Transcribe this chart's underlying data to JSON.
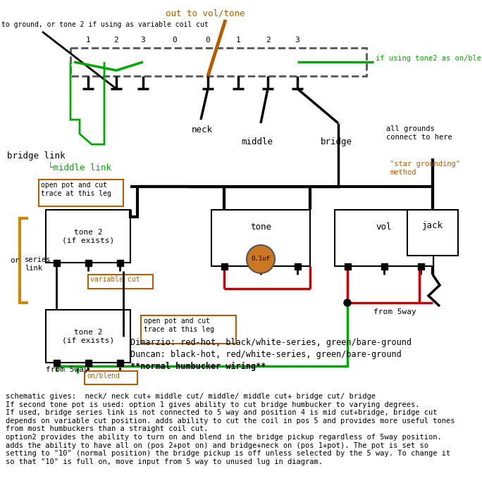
{
  "bg_color": "#ffffff",
  "fig_width": 6.84,
  "fig_height": 6.86,
  "switch_numbers_top": [
    "1",
    "2",
    "3",
    "0",
    "0",
    "1",
    "2",
    "3"
  ],
  "footer_line1": "Dimarzio: red-hot, black/white-series, green/bare-ground",
  "footer_line2": "Duncan: black-hot, red/white-series, green/bare-ground",
  "footer_line3": "**normal humbucker wiring**",
  "desc_text": "schematic gives:  neck/ neck cut+ middle cut/ middle/ middle cut+ bridge cut/ bridge\nIf second tone pot is used: option 1 gives ability to cut bridge humbucker to varying degrees.\nIf used, bridge series link is not connected to 5 way and position 4 is mid cut+bridge, bridge cut\ndepends on variable cut position. adds ability to cut the coil in pos 5 and provides more useful tones\nfrom most humbuckers than a straight coil cut.\noption2 provides the ability to turn on and blend in the bridge pickup regardless of 5way position.\nadds the ability to have all on (pos 2+pot on) and bridge+neck on (pos 1+pot). The pot is set so\nsetting to \"10\" (normal position) the bridge pickup is off unless selected by the 5 way. To change it\nso that \"10\" is full on, move input from 5 way to unused lug in diagram."
}
